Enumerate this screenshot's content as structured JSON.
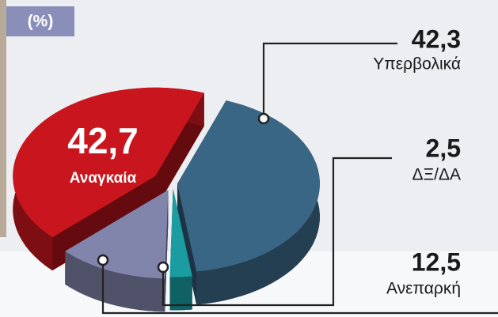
{
  "chart_data": {
    "type": "pie",
    "unit_label": "(%)",
    "categories": [
      "Υπερβολικά",
      "ΔΞ/ΔΑ",
      "Ανεπαρκή",
      "Αναγκαία"
    ],
    "values": [
      42.3,
      2.5,
      12.5,
      42.7
    ],
    "value_labels": [
      "42,3",
      "2,5",
      "12,5",
      "42,7"
    ],
    "colors": [
      "#3a6685",
      "#1a9ca0",
      "#8184ab",
      "#c9161e"
    ]
  }
}
